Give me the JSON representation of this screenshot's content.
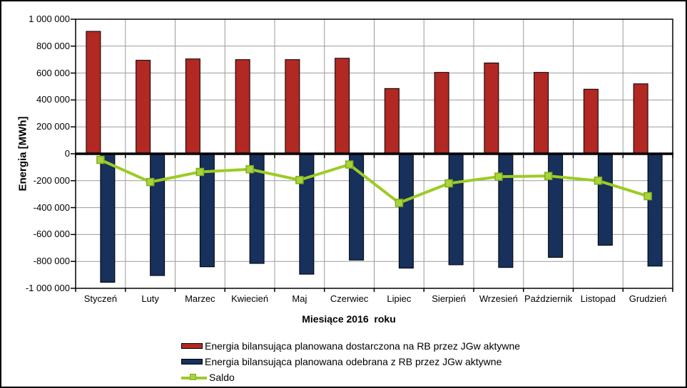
{
  "chart": {
    "y_axis_title": "Energia [MWh]",
    "x_axis_title": "Miesiące 2016  roku"
  },
  "chart_data": {
    "type": "bar",
    "title": "",
    "xlabel": "Miesiące 2016  roku",
    "ylabel": "Energia [MWh]",
    "categories": [
      "Styczeń",
      "Luty",
      "Marzec",
      "Kwiecień",
      "Maj",
      "Czerwiec",
      "Lipiec",
      "Sierpień",
      "Wrzesień",
      "Październik",
      "Listopad",
      "Grudzień"
    ],
    "series": [
      {
        "name": "Energia bilansująca planowana dostarczona na RB przez JGw aktywne",
        "kind": "bar",
        "color": "#B22823",
        "values": [
          910000,
          695000,
          705000,
          700000,
          700000,
          710000,
          485000,
          605000,
          675000,
          605000,
          480000,
          520000
        ]
      },
      {
        "name": "Energia bilansująca planowana odebrana z RB przez JGw aktywne",
        "kind": "bar",
        "color": "#17305C",
        "values": [
          -955000,
          -905000,
          -840000,
          -815000,
          -895000,
          -790000,
          -850000,
          -825000,
          -845000,
          -770000,
          -680000,
          -835000
        ]
      },
      {
        "name": "Saldo",
        "kind": "line",
        "color": "#9CCB23",
        "marker_fill": "#A5D53C",
        "marker_stroke": "#86AC1D",
        "values": [
          -45000,
          -210000,
          -135000,
          -115000,
          -195000,
          -80000,
          -365000,
          -220000,
          -170000,
          -165000,
          -200000,
          -315000
        ]
      }
    ],
    "ylim": [
      -1000000,
      1000000
    ],
    "y_ticks": [
      1000000,
      800000,
      600000,
      400000,
      200000,
      0,
      -200000,
      -400000,
      -600000,
      -800000,
      -1000000
    ],
    "y_tick_labels": [
      "1 000 000",
      "800 000",
      "600 000",
      "400 000",
      "200 000",
      "0",
      "-200 000",
      "-400 000",
      "-600 000",
      "-800 000",
      "-1 000 000"
    ],
    "grid": true,
    "grid_color": "#9B9B9B",
    "axis_color": "#000000",
    "zero_line_color": "#000000",
    "legend_position": "bottom"
  }
}
